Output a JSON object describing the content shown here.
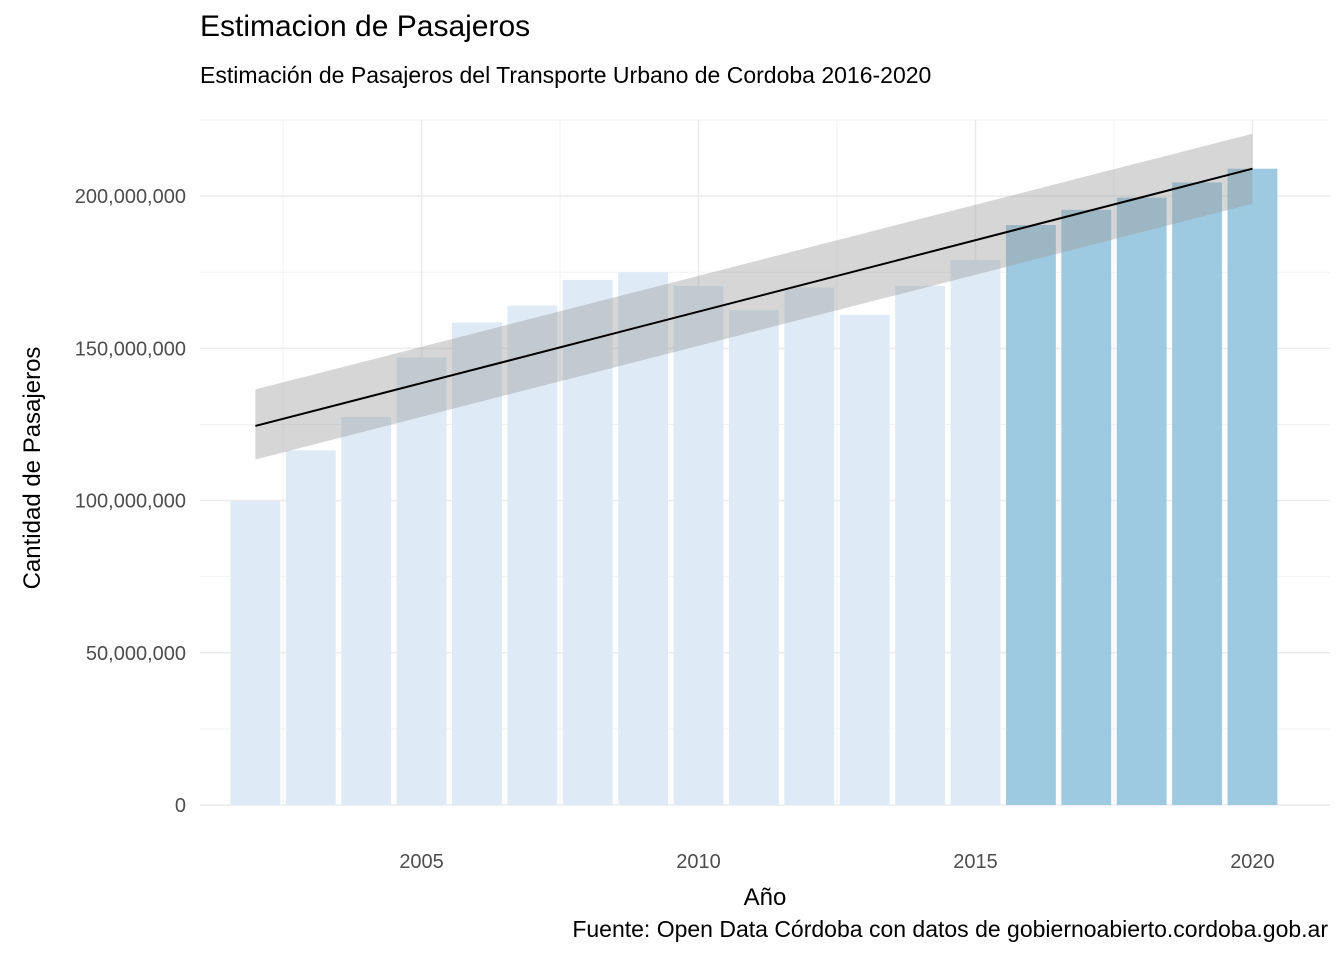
{
  "chart_data": {
    "type": "bar",
    "title": "Estimacion de Pasajeros",
    "subtitle": "Estimación de Pasajeros del Transporte Urbano de Cordoba 2016-2020",
    "caption": "Fuente: Open Data Córdoba con datos de gobiernoabierto.cordoba.gob.ar",
    "xlabel": "Año",
    "ylabel": "Cantidad de Pasajeros",
    "x": [
      2002,
      2003,
      2004,
      2005,
      2006,
      2007,
      2008,
      2009,
      2010,
      2011,
      2012,
      2013,
      2014,
      2015,
      2016,
      2017,
      2018,
      2019,
      2020
    ],
    "values": [
      100000000,
      116500000,
      127500000,
      147000000,
      158500000,
      164000000,
      172500000,
      175000000,
      170500000,
      162500000,
      170000000,
      161000000,
      170500000,
      179000000,
      190500000,
      195500000,
      199500000,
      204500000,
      209000000
    ],
    "estimated_from": 2016,
    "colors": {
      "observed": "#deebf7",
      "estimated": "#9ecae1",
      "trend": "#000000",
      "band": "#999999"
    },
    "trend": {
      "x": [
        2002,
        2020
      ],
      "y": [
        124500000,
        209000000
      ],
      "ci_lower": [
        113500000,
        197500000
      ],
      "ci_upper": [
        136500000,
        220500000
      ]
    },
    "xlim": [
      2001,
      2021.4
    ],
    "ylim": [
      0,
      225000000
    ],
    "xticks": [
      2005,
      2010,
      2015,
      2020
    ],
    "yticks": [
      0,
      50000000,
      100000000,
      150000000,
      200000000
    ],
    "ytick_labels": [
      "0",
      "50,000,000",
      "100,000,000",
      "150,000,000",
      "200,000,000"
    ],
    "grid": true,
    "legend": "none"
  }
}
